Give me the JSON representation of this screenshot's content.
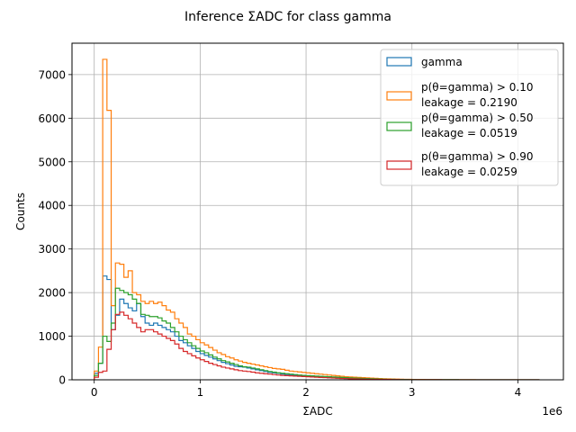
{
  "chart_data": {
    "type": "histogram-step",
    "title": "Inference ΣADC for class gamma",
    "xlabel": "ΣADC",
    "ylabel": "Counts",
    "x_offset_label": "1e6",
    "xlim": [
      -0.21,
      4.43
    ],
    "ylim": [
      0,
      7720
    ],
    "xticks": [
      0,
      1,
      2,
      3,
      4
    ],
    "xtick_labels": [
      "0",
      "1",
      "2",
      "3",
      "4"
    ],
    "yticks": [
      0,
      1000,
      2000,
      3000,
      4000,
      5000,
      6000,
      7000
    ],
    "ytick_labels": [
      "0",
      "1000",
      "2000",
      "3000",
      "4000",
      "5000",
      "6000",
      "7000"
    ],
    "x_unit_scale": 1000000,
    "grid": true,
    "legend_position": "upper right",
    "bin_edges": [
      0.0,
      0.04,
      0.08,
      0.12,
      0.16,
      0.2,
      0.24,
      0.28,
      0.32,
      0.36,
      0.4,
      0.44,
      0.48,
      0.52,
      0.56,
      0.6,
      0.64,
      0.68,
      0.72,
      0.76,
      0.8,
      0.84,
      0.88,
      0.92,
      0.96,
      1.0,
      1.04,
      1.08,
      1.12,
      1.16,
      1.2,
      1.24,
      1.28,
      1.32,
      1.36,
      1.4,
      1.44,
      1.48,
      1.52,
      1.56,
      1.6,
      1.64,
      1.68,
      1.72,
      1.76,
      1.8,
      1.84,
      1.88,
      1.92,
      1.96,
      2.0,
      2.04,
      2.08,
      2.12,
      2.16,
      2.2,
      2.24,
      2.28,
      2.32,
      2.36,
      2.4,
      2.44,
      2.48,
      2.52,
      2.56,
      2.6,
      2.64,
      2.68,
      2.72,
      2.76,
      2.8,
      2.84,
      2.88,
      2.92,
      2.96,
      3.0,
      3.04,
      3.08,
      3.12,
      3.16,
      3.2,
      3.24,
      3.28,
      3.32,
      3.36,
      3.4,
      3.44,
      3.48,
      3.52,
      3.56,
      3.6,
      3.64,
      3.68,
      3.72,
      3.76,
      3.8,
      3.84,
      3.88,
      3.92,
      3.96,
      4.0,
      4.04,
      4.08,
      4.12,
      4.16,
      4.2
    ],
    "series": [
      {
        "name": "gamma",
        "color": "#1f77b4",
        "values": [
          150,
          380,
          2380,
          2300,
          1150,
          1480,
          1850,
          1750,
          1650,
          1580,
          1750,
          1450,
          1300,
          1250,
          1300,
          1250,
          1200,
          1150,
          1100,
          1000,
          900,
          850,
          780,
          720,
          650,
          600,
          560,
          520,
          480,
          440,
          400,
          370,
          340,
          310,
          300,
          290,
          270,
          250,
          230,
          210,
          190,
          170,
          160,
          150,
          130,
          120,
          110,
          100,
          90,
          80,
          75,
          70,
          65,
          60,
          55,
          50,
          45,
          40,
          35,
          30,
          28,
          26,
          24,
          22,
          20,
          18,
          16,
          14,
          12,
          10,
          9,
          8,
          7,
          6,
          5,
          5,
          4,
          4,
          3,
          3,
          3,
          2,
          2,
          2,
          2,
          2,
          1,
          1,
          1,
          1,
          1,
          1,
          1,
          1,
          1,
          1,
          1,
          1,
          1,
          1,
          1,
          1,
          1,
          1,
          1
        ]
      },
      {
        "name": "p(θ=gamma) > 0.10\nleakage = 0.2190",
        "color": "#ff7f0e",
        "values": [
          200,
          750,
          7350,
          6180,
          1700,
          2680,
          2650,
          2350,
          2500,
          2000,
          1950,
          1800,
          1750,
          1800,
          1750,
          1780,
          1700,
          1600,
          1550,
          1400,
          1300,
          1200,
          1050,
          1000,
          920,
          850,
          800,
          740,
          680,
          620,
          580,
          530,
          500,
          460,
          430,
          400,
          380,
          360,
          340,
          320,
          300,
          280,
          260,
          250,
          240,
          220,
          200,
          190,
          180,
          170,
          160,
          150,
          140,
          130,
          120,
          110,
          100,
          90,
          80,
          70,
          65,
          60,
          55,
          50,
          45,
          40,
          35,
          30,
          25,
          20,
          18,
          16,
          14,
          12,
          10,
          9,
          8,
          7,
          6,
          5,
          5,
          4,
          4,
          3,
          3,
          3,
          2,
          2,
          2,
          2,
          1,
          1,
          1,
          1,
          1,
          1,
          1,
          1,
          1,
          1,
          1,
          1,
          1,
          1,
          1
        ]
      },
      {
        "name": "p(θ=gamma) > 0.50\nleakage = 0.0519",
        "color": "#2ca02c",
        "values": [
          100,
          380,
          1000,
          880,
          1300,
          2100,
          2050,
          2000,
          1950,
          1850,
          1750,
          1500,
          1480,
          1450,
          1450,
          1420,
          1350,
          1300,
          1200,
          1100,
          1000,
          920,
          850,
          780,
          720,
          660,
          620,
          570,
          520,
          480,
          440,
          410,
          380,
          350,
          320,
          300,
          290,
          270,
          250,
          230,
          210,
          190,
          175,
          160,
          150,
          140,
          130,
          120,
          110,
          100,
          95,
          90,
          85,
          80,
          75,
          70,
          65,
          60,
          55,
          50,
          45,
          40,
          36,
          32,
          28,
          24,
          20,
          17,
          14,
          12,
          10,
          9,
          8,
          7,
          6,
          5,
          4,
          4,
          3,
          3,
          3,
          2,
          2,
          2,
          2,
          2,
          1,
          1,
          1,
          1,
          1,
          1,
          1,
          1,
          1,
          1,
          1,
          1,
          1,
          1,
          1,
          1,
          1,
          1,
          1
        ]
      },
      {
        "name": "p(θ=gamma) > 0.90\nleakage = 0.0259",
        "color": "#d62728",
        "values": [
          60,
          170,
          200,
          700,
          1150,
          1500,
          1550,
          1480,
          1400,
          1300,
          1200,
          1100,
          1150,
          1150,
          1100,
          1050,
          1000,
          950,
          900,
          820,
          720,
          650,
          600,
          550,
          500,
          460,
          420,
          380,
          350,
          320,
          290,
          270,
          250,
          230,
          210,
          200,
          190,
          175,
          160,
          150,
          140,
          130,
          120,
          110,
          100,
          95,
          90,
          85,
          80,
          75,
          70,
          65,
          60,
          55,
          50,
          45,
          40,
          35,
          30,
          27,
          24,
          21,
          18,
          16,
          14,
          12,
          10,
          9,
          8,
          7,
          6,
          5,
          4,
          4,
          3,
          3,
          3,
          2,
          2,
          2,
          2,
          2,
          1,
          1,
          1,
          1,
          1,
          1,
          1,
          1,
          1,
          1,
          1,
          1,
          1,
          1,
          1,
          1,
          1,
          1,
          1,
          1,
          1,
          1,
          1
        ]
      }
    ]
  }
}
